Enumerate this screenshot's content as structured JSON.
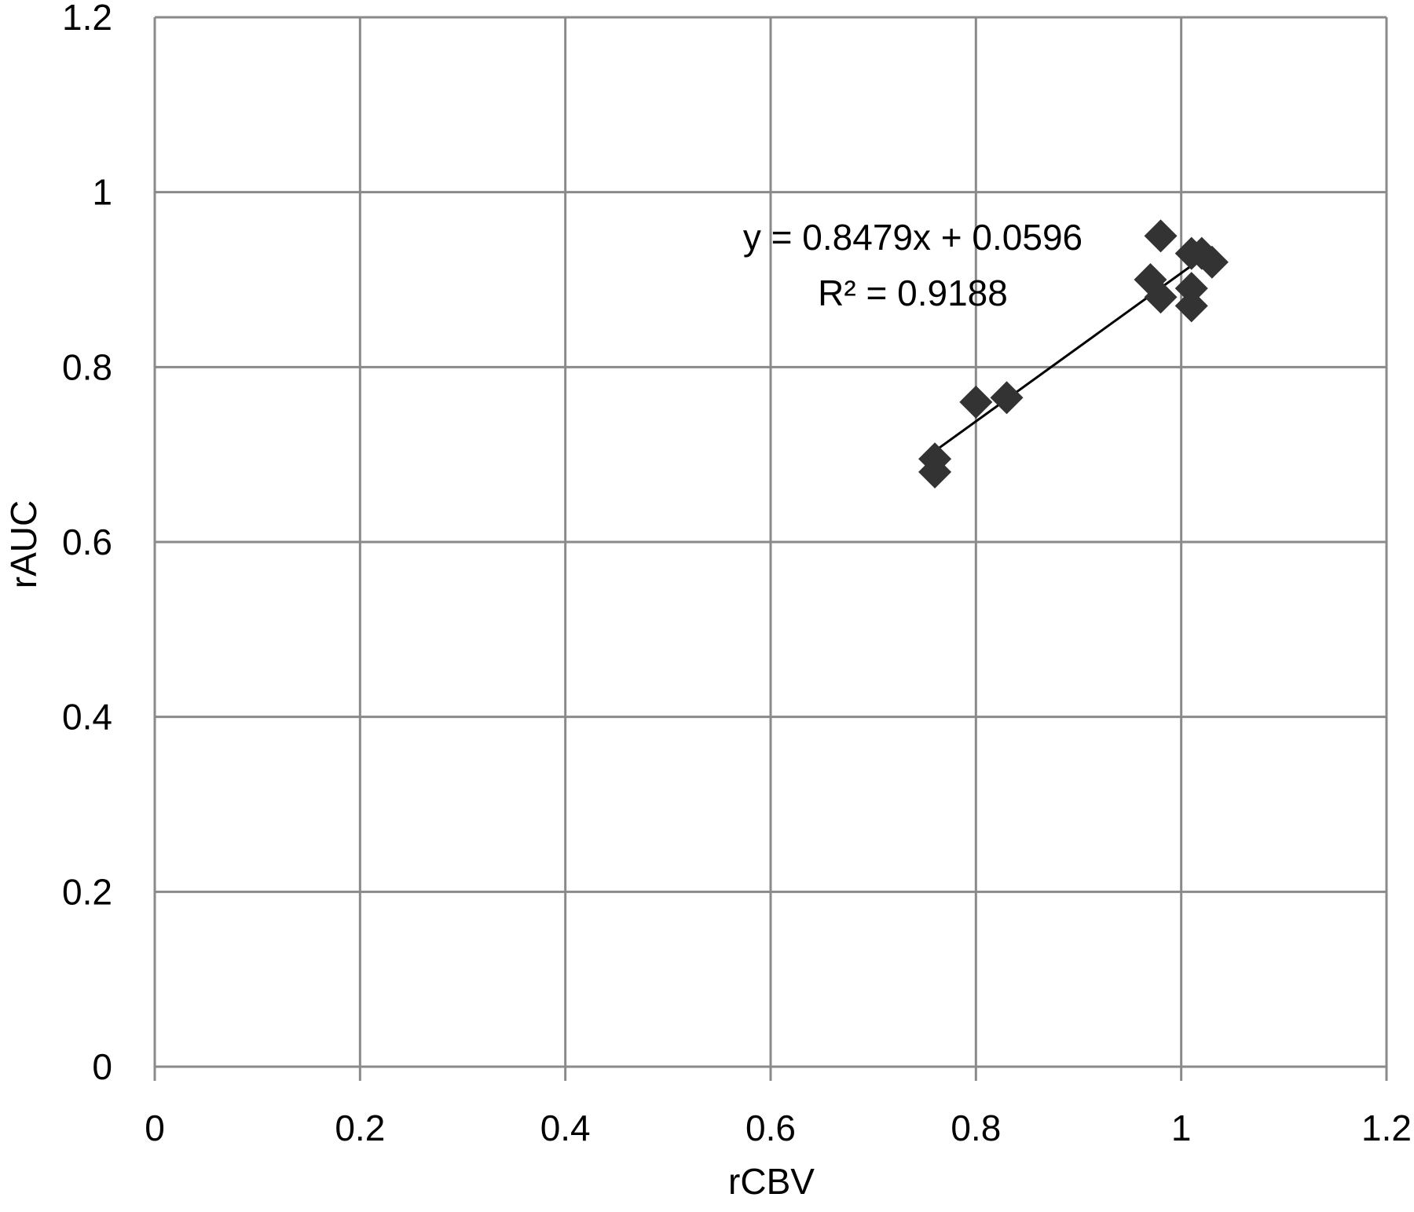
{
  "chart_data": {
    "type": "scatter",
    "title": "",
    "xlabel": "rCBV",
    "ylabel": "rAUC",
    "xlim": [
      0,
      1.2
    ],
    "ylim": [
      0,
      1.2
    ],
    "x_ticks": [
      "0",
      "0.2",
      "0.4",
      "0.6",
      "0.8",
      "1",
      "1.2"
    ],
    "y_ticks": [
      "0",
      "0.2",
      "0.4",
      "0.6",
      "0.8",
      "1",
      "1.2"
    ],
    "grid": true,
    "legend": "none",
    "series": [
      {
        "marker": "diamond",
        "color": "#333333",
        "points": [
          {
            "x": 0.76,
            "y": 0.695
          },
          {
            "x": 0.76,
            "y": 0.68
          },
          {
            "x": 0.8,
            "y": 0.76
          },
          {
            "x": 0.83,
            "y": 0.765
          },
          {
            "x": 0.97,
            "y": 0.9
          },
          {
            "x": 0.98,
            "y": 0.88
          },
          {
            "x": 0.98,
            "y": 0.95
          },
          {
            "x": 1.01,
            "y": 0.93
          },
          {
            "x": 1.02,
            "y": 0.93
          },
          {
            "x": 1.03,
            "y": 0.92
          },
          {
            "x": 1.01,
            "y": 0.89
          },
          {
            "x": 1.01,
            "y": 0.87
          }
        ]
      }
    ],
    "trendline": {
      "type": "linear",
      "slope": 0.8479,
      "intercept": 0.0596,
      "x_range": [
        0.76,
        1.03
      ],
      "color": "#000000"
    },
    "annotations": [
      {
        "text": "y = 0.8479x + 0.0596"
      },
      {
        "text": "R² = 0.9188"
      }
    ]
  }
}
